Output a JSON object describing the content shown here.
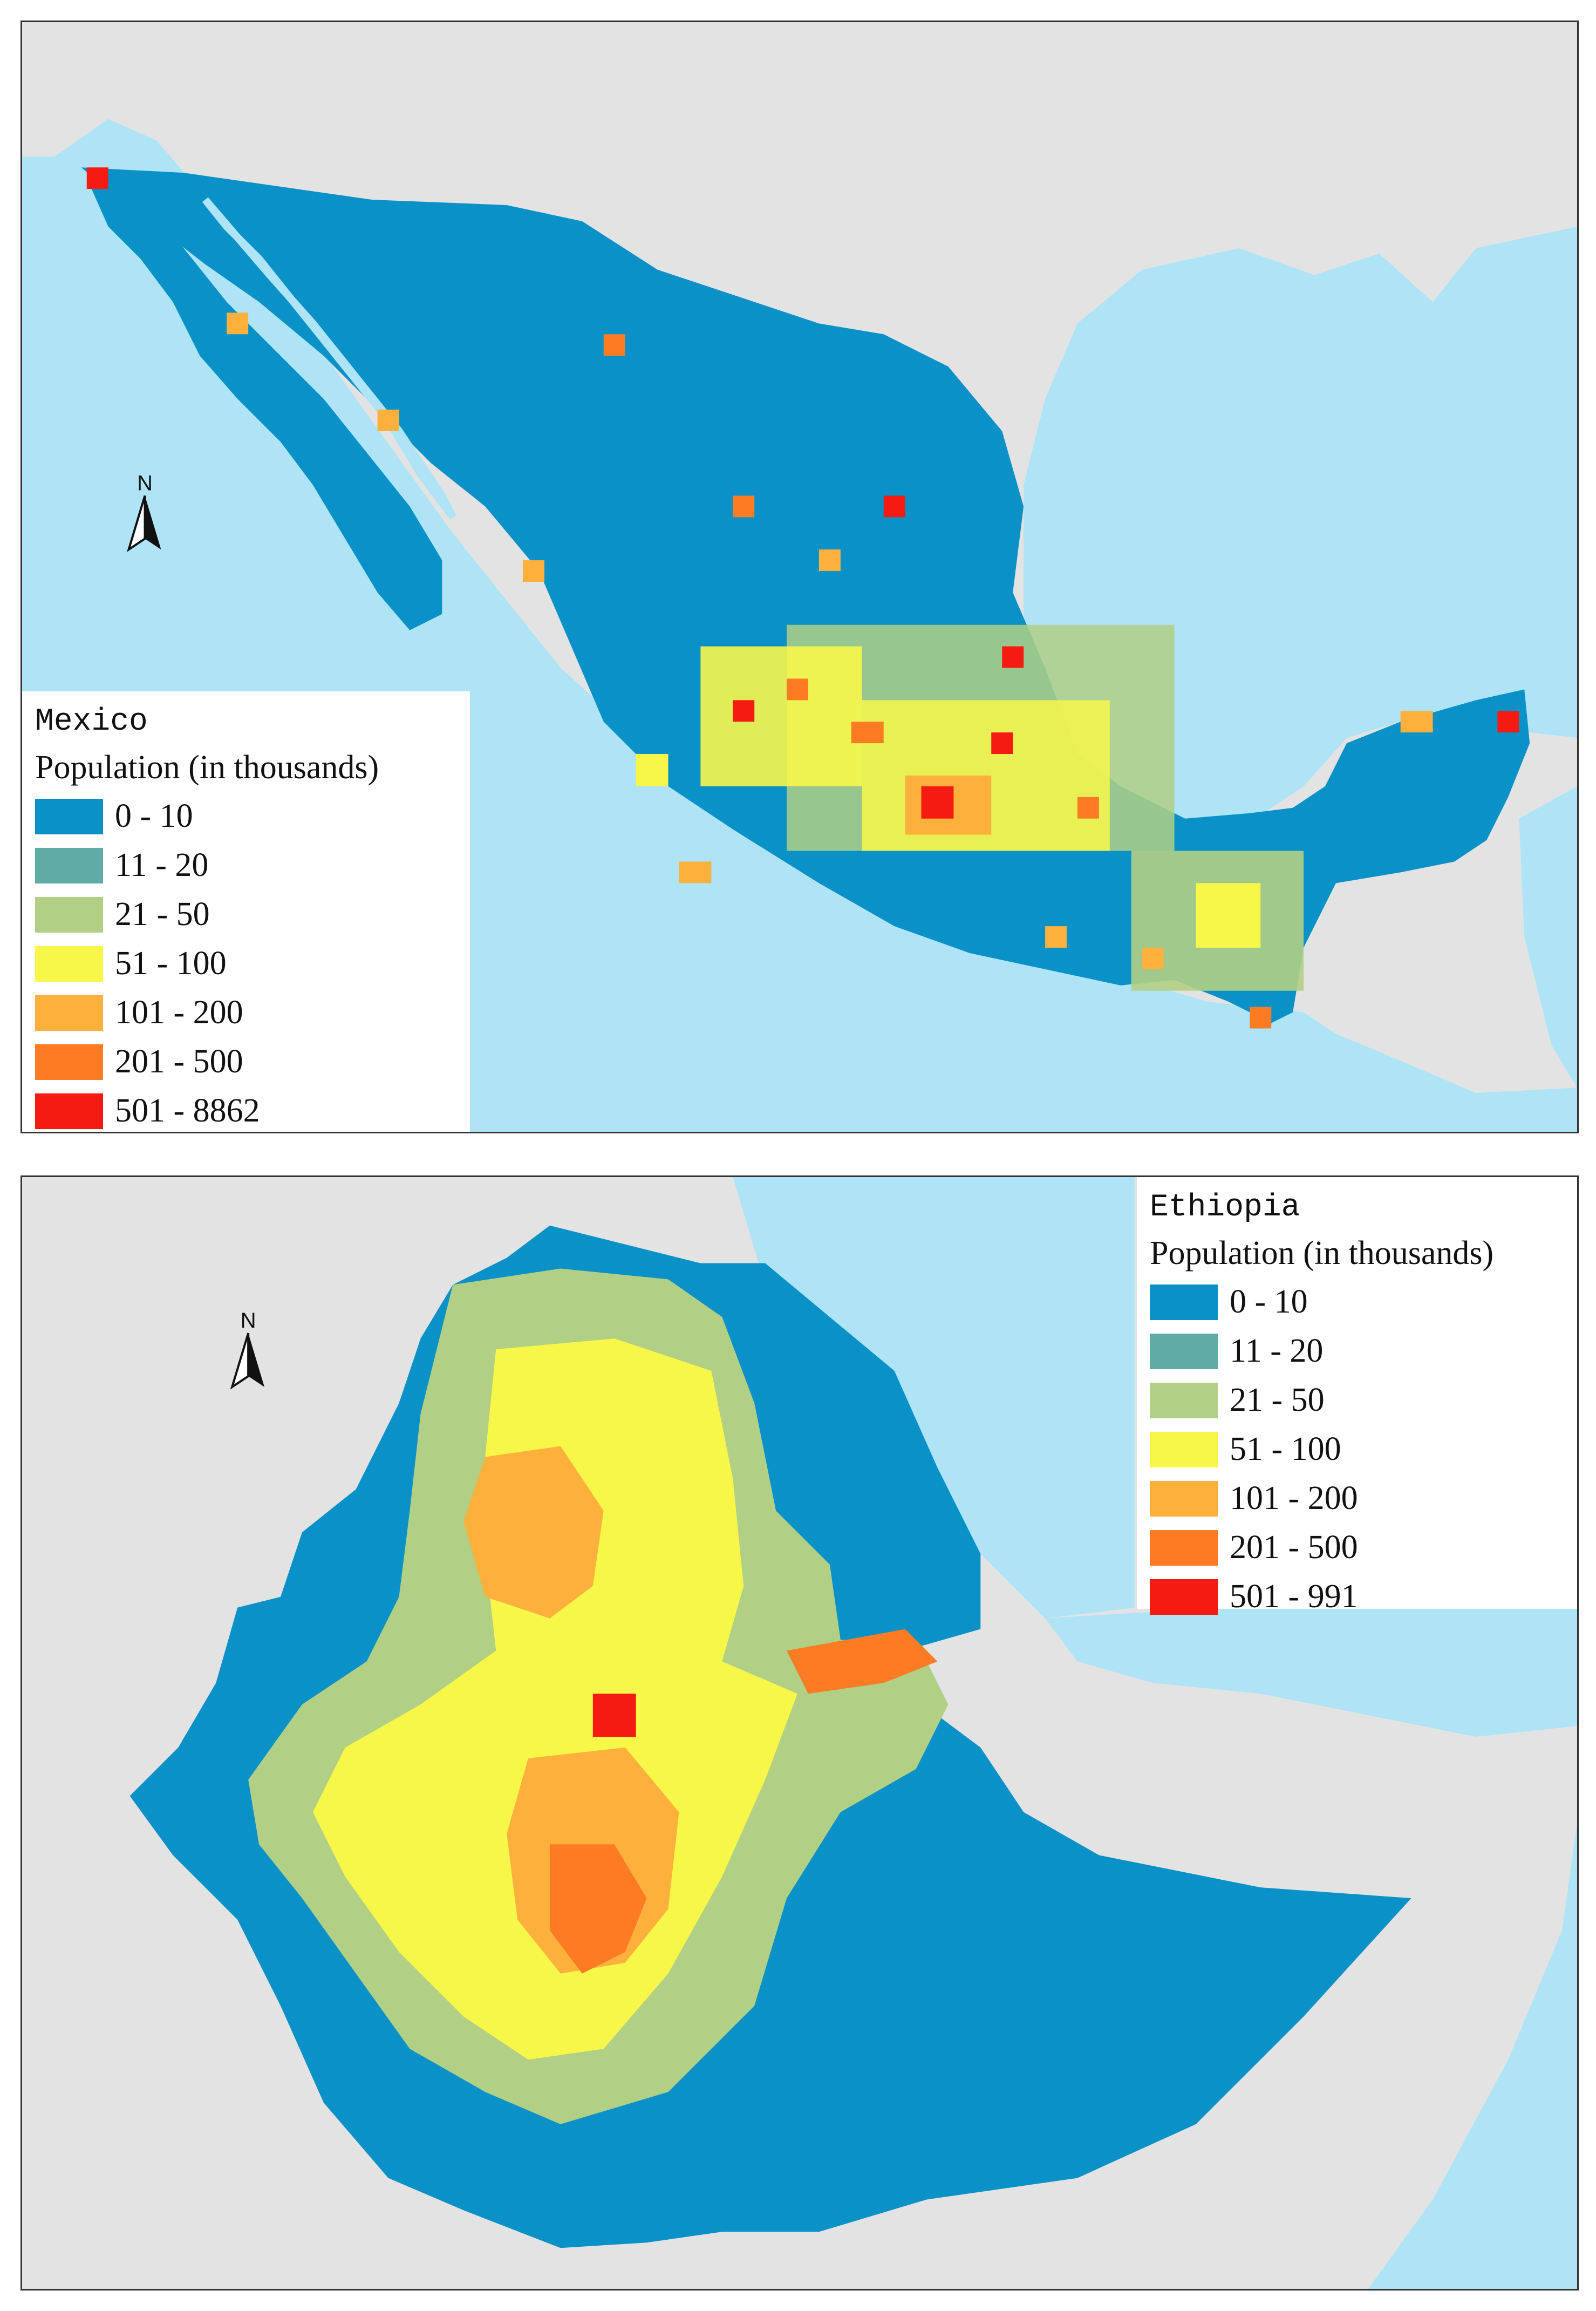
{
  "colors": {
    "sea": "#aee4f6",
    "land_background": "#e3e3e3",
    "classes": [
      "#0a92c8",
      "#5faba6",
      "#b1cf85",
      "#f7f74a",
      "#fdb13c",
      "#fc7b23",
      "#f51a12"
    ]
  },
  "north_arrow": {
    "letter": "N"
  },
  "maps": [
    {
      "legend_title": "Mexico",
      "legend_subtitle": "Population (in thousands)",
      "classes": [
        {
          "label": "0  -  10",
          "color": "#0a92c8"
        },
        {
          "label": "11  -  20",
          "color": "#5faba6"
        },
        {
          "label": "21  -  50",
          "color": "#b1cf85"
        },
        {
          "label": "51  -  100",
          "color": "#f7f74a"
        },
        {
          "label": "101  -  200",
          "color": "#fdb13c"
        },
        {
          "label": "201  -  500",
          "color": "#fc7b23"
        },
        {
          "label": "501  -  8862",
          "color": "#f51a12"
        }
      ]
    },
    {
      "legend_title": "Ethiopia",
      "legend_subtitle": "Population (in thousands)",
      "classes": [
        {
          "label": "0  -  10",
          "color": "#0a92c8"
        },
        {
          "label": "11  -  20",
          "color": "#5faba6"
        },
        {
          "label": "21  -  50",
          "color": "#b1cf85"
        },
        {
          "label": "51  -  100",
          "color": "#f7f74a"
        },
        {
          "label": "101  -  200",
          "color": "#fdb13c"
        },
        {
          "label": "201  -  500",
          "color": "#fc7b23"
        },
        {
          "label": "501  -  991",
          "color": "#f51a12"
        }
      ]
    }
  ]
}
